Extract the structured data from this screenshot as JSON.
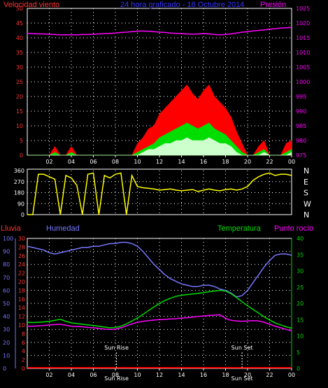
{
  "colors": {
    "background": "#000000",
    "frame": "#ffffff",
    "grid": "#ffffff",
    "wind_gust": "#ff0000",
    "wind_avg": "#00dd00",
    "wind_min": "#ccffcc",
    "pressure": "#ff00ff",
    "direction": "#ffff00",
    "rain": "#ff0000",
    "humidity": "#7777ff",
    "temperature": "#00dd00",
    "dewpoint": "#ff00ff",
    "sun_marker": "#ffffff"
  },
  "top_panel": {
    "title": "24 hora graficado - 18 Octubre 2014",
    "left_label": "Velocidad viento",
    "right_label": "Presión",
    "left_ticks": [
      "0",
      "5",
      "10",
      "15",
      "20",
      "25",
      "30",
      "35",
      "40",
      "45",
      "50"
    ],
    "right_ticks": [
      "975",
      "980",
      "985",
      "990",
      "995",
      "1000",
      "1005",
      "1010",
      "1015",
      "1020",
      "1025"
    ],
    "x_ticks": [
      "02",
      "04",
      "06",
      "08",
      "10",
      "12",
      "14",
      "16",
      "18",
      "20",
      "22",
      "00"
    ]
  },
  "middle_panel": {
    "y_ticks": [
      "0",
      "90",
      "180",
      "270",
      "360"
    ],
    "compass": [
      "N",
      "W",
      "S",
      "E",
      "N"
    ],
    "x_ticks": [
      "02",
      "04",
      "06",
      "08",
      "10",
      "12",
      "14",
      "16",
      "18",
      "20",
      "22",
      "00"
    ]
  },
  "bottom_panel": {
    "rain_label": "Lluvia",
    "humidity_label": "Humedad",
    "temperature_label": "Temperatura",
    "dewpoint_label": "Punto rocío",
    "humidity_ticks": [
      "0",
      "10",
      "20",
      "30",
      "40",
      "50",
      "60",
      "70",
      "80",
      "90",
      "100"
    ],
    "rain_ticks": [
      "0",
      "2",
      "4",
      "6",
      "8",
      "10",
      "12",
      "14",
      "16",
      "18",
      "20",
      "22",
      "24",
      "26",
      "28",
      "30"
    ],
    "temp_ticks": [
      "0",
      "5",
      "10",
      "15",
      "20",
      "25",
      "30",
      "35",
      "40"
    ],
    "x_ticks": [
      "02",
      "04",
      "06",
      "08",
      "10",
      "12",
      "14",
      "16",
      "18",
      "20",
      "22",
      "00"
    ],
    "sunrise_label": "Sun Rise",
    "sunset_label": "Sun Set",
    "sunrise_x_label": "Sun Rise",
    "sunset_x_label": "Sun Set"
  },
  "chart_data": [
    {
      "type": "area",
      "x_unit": "hour",
      "x": [
        0,
        0.5,
        1,
        1.5,
        2,
        2.5,
        3,
        3.5,
        4,
        4.5,
        5,
        5.5,
        6,
        6.5,
        7,
        7.5,
        8,
        8.5,
        9,
        9.5,
        10,
        10.5,
        11,
        11.5,
        12,
        12.5,
        13,
        13.5,
        14,
        14.5,
        15,
        15.5,
        16,
        16.5,
        17,
        17.5,
        18,
        18.5,
        19,
        19.5,
        20,
        20.5,
        21,
        21.5,
        22,
        22.5,
        23,
        23.5,
        24
      ],
      "series": [
        {
          "name": "gust",
          "values": [
            0,
            0,
            0,
            0,
            0,
            3,
            0,
            0,
            3,
            0,
            0,
            0,
            0,
            0,
            0,
            0,
            0,
            0,
            0,
            0,
            4,
            6,
            9,
            10,
            14,
            16,
            18,
            20,
            22,
            24,
            21,
            19,
            22,
            24,
            20,
            18,
            16,
            13,
            8,
            4,
            0,
            0,
            3,
            5,
            0,
            0,
            0,
            4,
            5
          ]
        },
        {
          "name": "avg",
          "values": [
            0,
            0,
            0,
            0,
            0,
            1,
            0,
            0,
            1,
            0,
            0,
            0,
            0,
            0,
            0,
            0,
            0,
            0,
            0,
            0,
            1,
            2,
            3,
            4,
            6,
            7,
            8,
            9,
            10,
            11,
            10,
            9,
            10,
            11,
            9,
            8,
            7,
            5,
            3,
            1,
            0,
            0,
            1,
            2,
            0,
            0,
            0,
            1,
            2
          ]
        },
        {
          "name": "min",
          "values": [
            0,
            0,
            0,
            0,
            0,
            0,
            0,
            0,
            0,
            0,
            0,
            0,
            0,
            0,
            0,
            0,
            0,
            0,
            0,
            0,
            0,
            1,
            2,
            2,
            3,
            4,
            4,
            5,
            5,
            6,
            5,
            5,
            5,
            6,
            5,
            4,
            4,
            3,
            1,
            0,
            0,
            0,
            0,
            1,
            0,
            0,
            0,
            0,
            1
          ]
        },
        {
          "name": "pressure",
          "values": [
            1016.5,
            1016.4,
            1016.3,
            1016.3,
            1016.2,
            1016.1,
            1016.0,
            1016.0,
            1016.0,
            1016.0,
            1016.1,
            1016.1,
            1016.2,
            1016.3,
            1016.4,
            1016.5,
            1016.6,
            1016.8,
            1016.9,
            1017.1,
            1017.2,
            1017.3,
            1017.2,
            1017.1,
            1016.9,
            1016.8,
            1016.6,
            1016.5,
            1016.4,
            1016.3,
            1016.2,
            1016.3,
            1016.4,
            1016.3,
            1016.1,
            1016.0,
            1016.1,
            1016.3,
            1016.6,
            1016.9,
            1017.1,
            1017.3,
            1017.5,
            1017.7,
            1017.9,
            1018.1,
            1018.3,
            1018.4,
            1018.5
          ]
        }
      ],
      "ylim": [
        0,
        50
      ],
      "y2lim": [
        975,
        1025
      ]
    },
    {
      "type": "line",
      "x_unit": "hour",
      "x": [
        0,
        0.5,
        1,
        1.5,
        2,
        2.5,
        3,
        3.5,
        4,
        4.5,
        5,
        5.5,
        6,
        6.5,
        7,
        7.5,
        8,
        8.5,
        9,
        9.5,
        10,
        10.5,
        11,
        11.5,
        12,
        12.5,
        13,
        13.5,
        14,
        14.5,
        15,
        15.5,
        16,
        16.5,
        17,
        17.5,
        18,
        18.5,
        19,
        19.5,
        20,
        20.5,
        21,
        21.5,
        22,
        22.5,
        23,
        23.5,
        24
      ],
      "series": [
        {
          "name": "direction",
          "values": [
            0,
            0,
            330,
            330,
            310,
            290,
            0,
            320,
            300,
            240,
            0,
            330,
            340,
            0,
            320,
            300,
            330,
            340,
            0,
            320,
            230,
            220,
            215,
            210,
            200,
            205,
            210,
            200,
            195,
            200,
            205,
            190,
            200,
            210,
            200,
            195,
            205,
            210,
            200,
            210,
            230,
            280,
            310,
            330,
            340,
            320,
            330,
            330,
            320
          ]
        }
      ],
      "ylim": [
        0,
        360
      ]
    },
    {
      "type": "line",
      "x_unit": "hour",
      "x": [
        0,
        0.5,
        1,
        1.5,
        2,
        2.5,
        3,
        3.5,
        4,
        4.5,
        5,
        5.5,
        6,
        6.5,
        7,
        7.5,
        8,
        8.5,
        9,
        9.5,
        10,
        10.5,
        11,
        11.5,
        12,
        12.5,
        13,
        13.5,
        14,
        14.5,
        15,
        15.5,
        16,
        16.5,
        17,
        17.5,
        18,
        18.5,
        19,
        19.5,
        20,
        20.5,
        21,
        21.5,
        22,
        22.5,
        23,
        23.5,
        24
      ],
      "series": [
        {
          "name": "rain",
          "values": [
            0,
            0,
            0,
            0,
            0,
            0,
            0,
            0,
            0,
            0,
            0,
            0,
            0,
            0,
            0,
            0,
            0,
            0,
            0,
            0,
            0,
            0,
            0,
            0,
            0,
            0,
            0,
            0,
            0,
            0,
            0,
            0,
            0,
            0,
            0,
            0,
            0,
            0,
            0,
            0,
            0,
            0,
            0,
            0,
            0,
            0,
            0,
            0,
            0
          ]
        },
        {
          "name": "humidity",
          "values": [
            94,
            93,
            92,
            91,
            89,
            88,
            89,
            90,
            91,
            92,
            93,
            93,
            94,
            94,
            95,
            96,
            96,
            97,
            97,
            96,
            94,
            90,
            85,
            80,
            76,
            72,
            69,
            67,
            65,
            64,
            63,
            63,
            64,
            64,
            63,
            61,
            60,
            58,
            55,
            56,
            60,
            66,
            72,
            78,
            83,
            87,
            88,
            88,
            87
          ]
        },
        {
          "name": "temperature",
          "values": [
            14.2,
            14.1,
            14.2,
            14.3,
            14.5,
            14.8,
            15.1,
            14.5,
            14.0,
            13.8,
            13.6,
            13.4,
            13.2,
            13.0,
            12.7,
            12.5,
            12.6,
            13.0,
            13.7,
            14.6,
            15.5,
            16.6,
            17.8,
            18.9,
            20.0,
            20.9,
            21.6,
            22.2,
            22.5,
            22.7,
            22.9,
            23.1,
            23.3,
            23.6,
            23.8,
            24.0,
            23.8,
            23.0,
            21.8,
            20.5,
            19.3,
            18.1,
            17.0,
            15.9,
            14.9,
            14.0,
            13.4,
            12.8,
            12.4
          ]
        },
        {
          "name": "dewpoint",
          "values": [
            13.0,
            13.0,
            13.1,
            13.2,
            13.4,
            13.5,
            13.6,
            13.3,
            13.0,
            12.9,
            12.8,
            12.6,
            12.5,
            12.3,
            12.1,
            12.0,
            12.1,
            12.5,
            13.1,
            13.7,
            14.2,
            14.5,
            14.7,
            14.9,
            15.0,
            15.1,
            15.2,
            15.3,
            15.5,
            15.6,
            15.8,
            16.0,
            16.1,
            16.3,
            16.4,
            16.5,
            15.4,
            14.8,
            14.6,
            14.5,
            14.6,
            14.7,
            14.6,
            14.2,
            13.6,
            13.0,
            12.5,
            12.0,
            11.6
          ]
        }
      ],
      "ylim": [
        0,
        100
      ],
      "y2lim": [
        0,
        40
      ],
      "rain_lim": [
        0,
        30
      ],
      "sunrise_hour": 8.1,
      "sunset_hour": 19.5
    }
  ]
}
